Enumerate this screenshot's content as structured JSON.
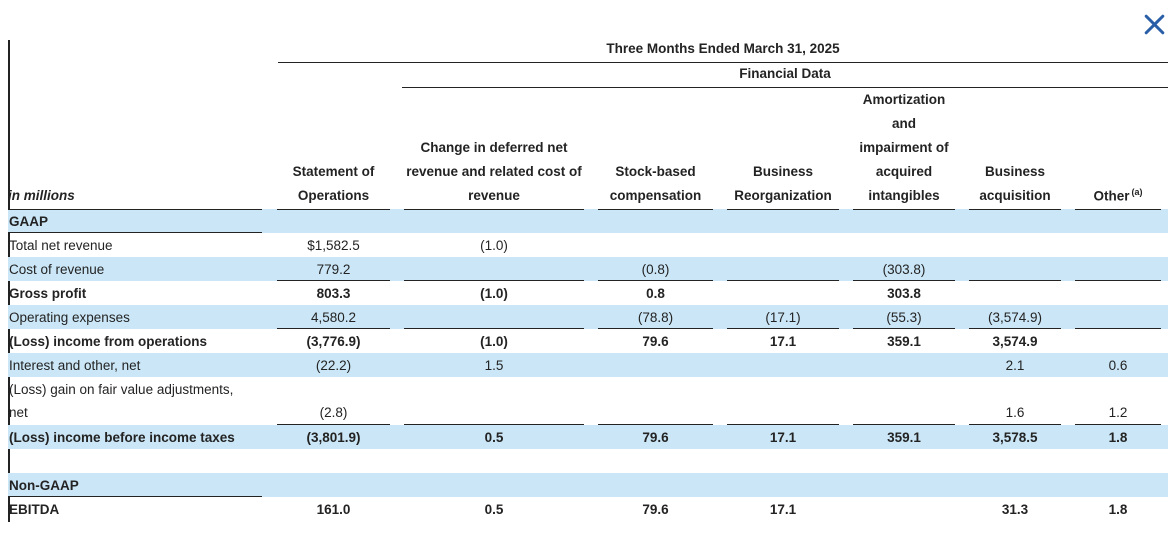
{
  "colors": {
    "row_shade": "#cbe7f7",
    "accent_blue": "#2a5fa8",
    "text": "#232323"
  },
  "icons": {
    "close": "x-cross"
  },
  "header": {
    "period_title": "Three Months Ended March 31, 2025",
    "section_title": "Financial Data",
    "unit_note": "in millions",
    "columns": [
      {
        "label": "Statement of\nOperations"
      },
      {
        "label": "Change in deferred net\nrevenue and related cost of\nrevenue"
      },
      {
        "label": "Stock-based\ncompensation"
      },
      {
        "label": "Business\nReorganization"
      },
      {
        "label": "Amortization\nand\nimpairment of\nacquired\nintangibles"
      },
      {
        "label": "Business\nacquisition"
      },
      {
        "label": "Other",
        "superscript": "(a)"
      }
    ]
  },
  "table": {
    "rows": [
      {
        "label": "GAAP",
        "section": true,
        "shaded": true,
        "bold": true,
        "values": [
          "",
          "",
          "",
          "",
          "",
          "",
          ""
        ]
      },
      {
        "label": "Total net revenue",
        "values": [
          "$1,582.5",
          "(1.0)",
          "",
          "",
          "",
          "",
          ""
        ]
      },
      {
        "label": "Cost of revenue",
        "shaded": true,
        "rule": true,
        "values": [
          "779.2",
          "",
          "(0.8)",
          "",
          "(303.8)",
          "",
          ""
        ]
      },
      {
        "label": "Gross profit",
        "bold": true,
        "values": [
          "803.3",
          "(1.0)",
          "0.8",
          "",
          "303.8",
          "",
          ""
        ]
      },
      {
        "label": "Operating expenses",
        "shaded": true,
        "rule": true,
        "values": [
          "4,580.2",
          "",
          "(78.8)",
          "(17.1)",
          "(55.3)",
          "(3,574.9)",
          ""
        ]
      },
      {
        "label": "(Loss) income from operations",
        "bold": true,
        "values": [
          "(3,776.9)",
          "(1.0)",
          "79.6",
          "17.1",
          "359.1",
          "3,574.9",
          ""
        ]
      },
      {
        "label": "Interest and other, net",
        "shaded": true,
        "values": [
          "(22.2)",
          "1.5",
          "",
          "",
          "",
          "2.1",
          "0.6"
        ]
      },
      {
        "label": "(Loss) gain on fair value adjustments,\nnet",
        "tall": true,
        "rule": true,
        "values": [
          "(2.8)",
          "",
          "",
          "",
          "",
          "1.6",
          "1.2"
        ]
      },
      {
        "label": "(Loss) income before income taxes",
        "shaded": true,
        "bold": true,
        "values": [
          "(3,801.9)",
          "0.5",
          "79.6",
          "17.1",
          "359.1",
          "3,578.5",
          "1.8"
        ]
      },
      {
        "label": "",
        "spacer": true,
        "values": [
          "",
          "",
          "",
          "",
          "",
          "",
          ""
        ]
      },
      {
        "label": "Non-GAAP",
        "section": true,
        "shaded": true,
        "bold": true,
        "values": [
          "",
          "",
          "",
          "",
          "",
          "",
          ""
        ]
      },
      {
        "label": "EBITDA",
        "bold": true,
        "values": [
          "161.0",
          "0.5",
          "79.6",
          "17.1",
          "",
          "31.3",
          "1.8"
        ]
      }
    ]
  }
}
